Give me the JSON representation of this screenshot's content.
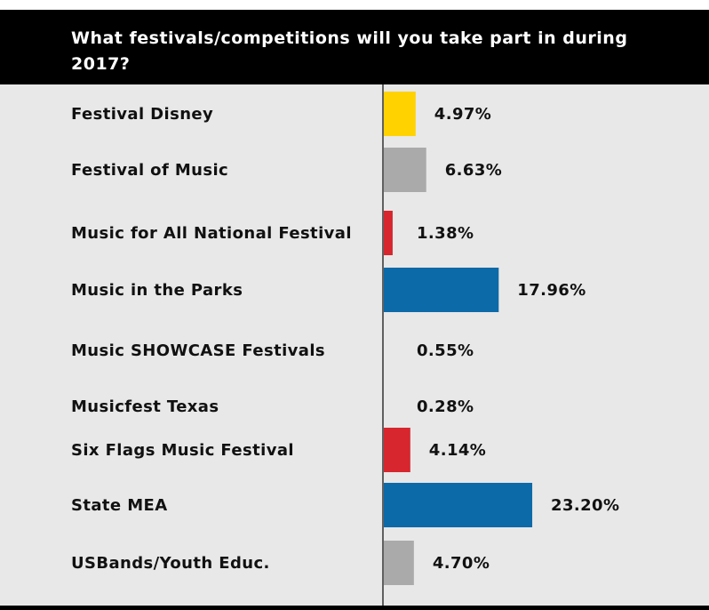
{
  "header": {
    "title": "What festivals/competitions will you take part in during 2017?"
  },
  "chart_data": {
    "type": "bar",
    "orientation": "horizontal",
    "title": "What festivals/competitions will you take part in during 2017?",
    "unit": "%",
    "categories": [
      "Festival Disney",
      "Festival of Music",
      "Music for All National Festival",
      "Music in the Parks",
      "Music SHOWCASE Festivals",
      "Musicfest Texas",
      "Six Flags Music Festival",
      "State MEA",
      "USBands/Youth Educ."
    ],
    "values": [
      4.97,
      6.63,
      1.38,
      17.96,
      0.55,
      0.28,
      4.14,
      23.2,
      4.7
    ],
    "value_labels": [
      "4.97%",
      "6.63%",
      "1.38%",
      "17.96%",
      "0.55%",
      "0.28%",
      "4.14%",
      "23.20%",
      "4.70%"
    ],
    "colors": [
      "#ffd200",
      "#aaaaaa",
      "#d7262e",
      "#0d6aa8",
      "#ffd200",
      "#aaaaaa",
      "#d7262e",
      "#0d6aa8",
      "#aaaaaa"
    ],
    "grid": false,
    "legend": "none"
  },
  "theme": {
    "header_bg": "#000000",
    "header_text": "#ffffff",
    "panel_bg": "#e8e8e8",
    "axis_color": "#333333"
  }
}
